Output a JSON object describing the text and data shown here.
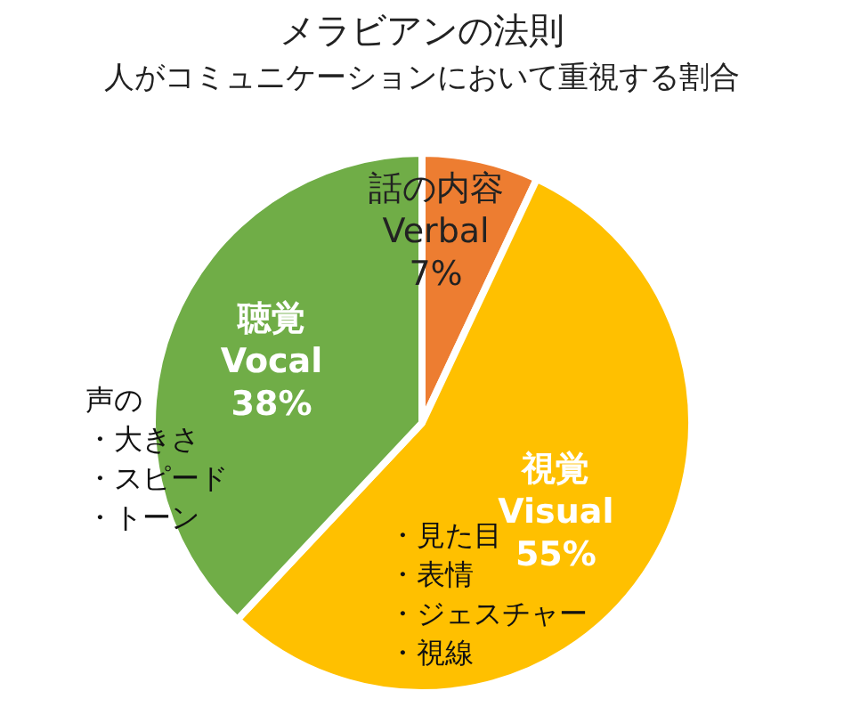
{
  "chart_data": {
    "type": "pie",
    "title": "メラビアンの法則",
    "subtitle": "人がコミュニケーションにおいて重視する割合",
    "categories": [
      "話の内容\nVerbal",
      "視覚\nVisual",
      "聴覚\nVocal"
    ],
    "values": [
      7,
      55,
      38
    ],
    "colors": [
      "#ed7d31",
      "#ffc000",
      "#70ad47"
    ],
    "value_labels": [
      "7%",
      "55%",
      "38%"
    ],
    "legend": false,
    "annotations": [
      "声の",
      "・大きさ",
      "・スピード",
      "・トーン",
      "・見た目",
      "・表情",
      "・ジェスチャー",
      "・視線"
    ]
  }
}
